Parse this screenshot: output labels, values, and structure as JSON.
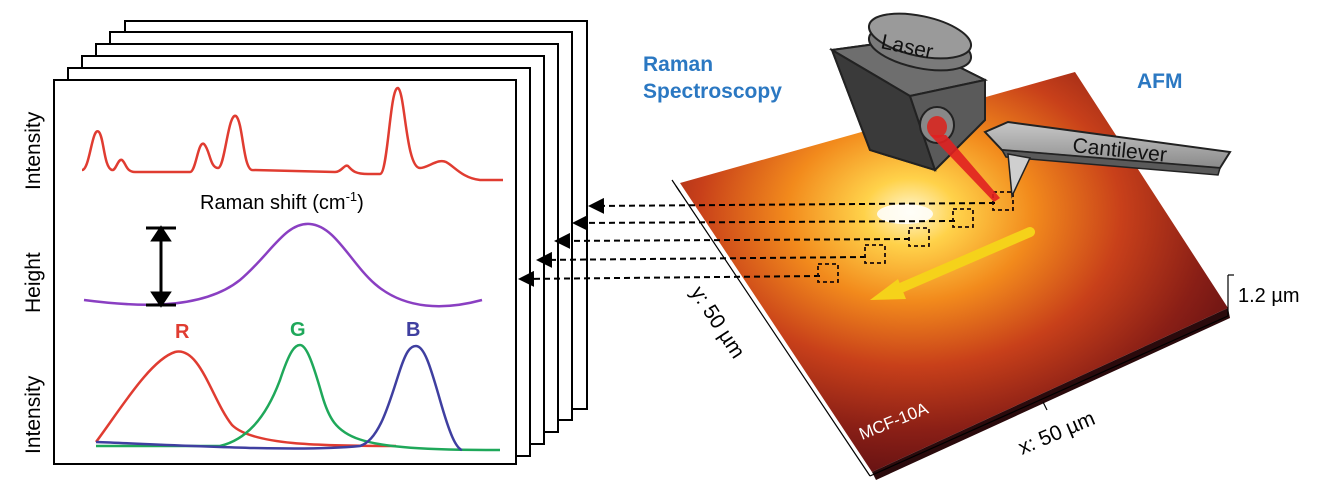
{
  "panel": {
    "intensity_label_top": "Intensity",
    "height_label": "Height",
    "intensity_label_bottom": "Intensity",
    "raman_shift_label": "Raman shift (cm",
    "raman_shift_sup": "-1",
    "raman_shift_close": ")",
    "channels": [
      {
        "letter": "R",
        "color": "#e03c31"
      },
      {
        "letter": "G",
        "color": "#1fa85a"
      },
      {
        "letter": "B",
        "color": "#3f3fa0"
      }
    ]
  },
  "setup": {
    "raman_title_line1": "Raman",
    "raman_title_line2": "Spectroscopy",
    "afm_title": "AFM",
    "laser_label": "Laser",
    "cantilever_label": "Cantilever",
    "sample_label": "MCF-10A",
    "x_axis_label": "x: 50 µm",
    "y_axis_label": "y: 50 µm",
    "z_axis_label": "1.2 µm",
    "accent_color": "#2b78c2"
  },
  "colors": {
    "spectrum": "#e03c31",
    "height_profile": "#8a3fc2",
    "scan_arrow": "#f5d21a",
    "laser_beam": "#e02020"
  }
}
